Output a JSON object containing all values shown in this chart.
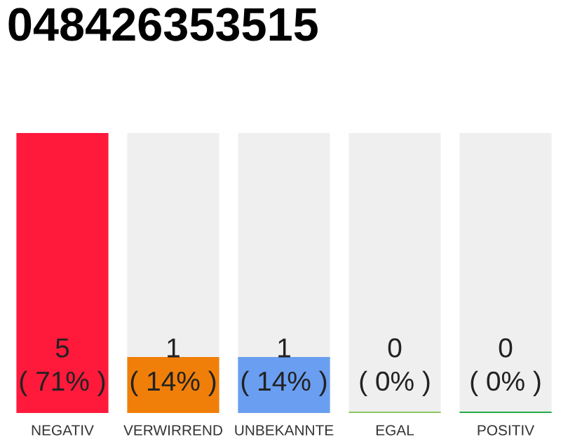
{
  "chart_data": {
    "type": "bar",
    "title": "048426353515",
    "categories": [
      "NEGATIV",
      "VERWIRREND",
      "UNBEKANNTE",
      "EGAL",
      "POSITIV"
    ],
    "colors": [
      "#ff1a3c",
      "#f07f0a",
      "#6a9ef0",
      "#8bc860",
      "#22aa44"
    ],
    "values": [
      5,
      1,
      1,
      0,
      0
    ],
    "value_labels": [
      "5\n( 71% )",
      "1\n( 14% )",
      "1\n( 14% )",
      "0\n( 0% )",
      "0\n( 0% )"
    ]
  }
}
